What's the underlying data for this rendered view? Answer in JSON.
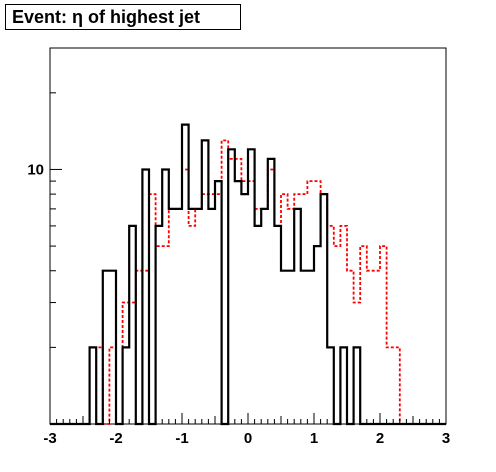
{
  "chart_data": {
    "type": "step-histogram",
    "title": "Event: η of highest jet",
    "xlabel": "",
    "ylabel": "",
    "xlim": [
      -3,
      3
    ],
    "ylog": true,
    "ylim": [
      1,
      30
    ],
    "xticks": [
      -3,
      -2,
      -1,
      0,
      1,
      2,
      3
    ],
    "xtick_labels": [
      "-3",
      "-2",
      "-1",
      "0",
      "1",
      "2",
      "3"
    ],
    "yticks": [
      10
    ],
    "ytick_labels": [
      "10"
    ],
    "bin_edges": [
      -3.0,
      -2.8,
      -2.6,
      -2.4,
      -2.3,
      -2.2,
      -2.1,
      -2.0,
      -1.9,
      -1.8,
      -1.7,
      -1.6,
      -1.5,
      -1.4,
      -1.3,
      -1.2,
      -1.1,
      -1.0,
      -0.9,
      -0.8,
      -0.7,
      -0.6,
      -0.5,
      -0.4,
      -0.3,
      -0.2,
      -0.1,
      0.0,
      0.1,
      0.2,
      0.3,
      0.4,
      0.5,
      0.6,
      0.7,
      0.8,
      0.9,
      1.0,
      1.1,
      1.2,
      1.3,
      1.4,
      1.5,
      1.6,
      1.7,
      1.8,
      1.9,
      2.0,
      2.1,
      2.2,
      2.3,
      2.4,
      2.5,
      2.6,
      2.8,
      3.0
    ],
    "series": [
      {
        "color": "#000000",
        "dash": "solid",
        "values": [
          0,
          0,
          0,
          2,
          0,
          4,
          4,
          1,
          2,
          6,
          0,
          10,
          0,
          6,
          10,
          7,
          7,
          15,
          7,
          7,
          13,
          7,
          9,
          0,
          12,
          9,
          8,
          12,
          6,
          7,
          11,
          6,
          4,
          4,
          7,
          4,
          4,
          5,
          8,
          2,
          0,
          2,
          1,
          2,
          1,
          0,
          0,
          0,
          0,
          0,
          0,
          0,
          0,
          0,
          0
        ]
      },
      {
        "color": "#ff0000",
        "dash": "dotted",
        "values": [
          0,
          0,
          0,
          2,
          2,
          0,
          2,
          0,
          3,
          3,
          4,
          4,
          8,
          5,
          5,
          7,
          7,
          10,
          6,
          7,
          8,
          8,
          8,
          13,
          11,
          11,
          9,
          9,
          7,
          7,
          10,
          6,
          8,
          7,
          8,
          8,
          9,
          9,
          8,
          6,
          5,
          6,
          4,
          3,
          5,
          4,
          4,
          5,
          2,
          2,
          1,
          1,
          0,
          0,
          0
        ]
      }
    ]
  }
}
